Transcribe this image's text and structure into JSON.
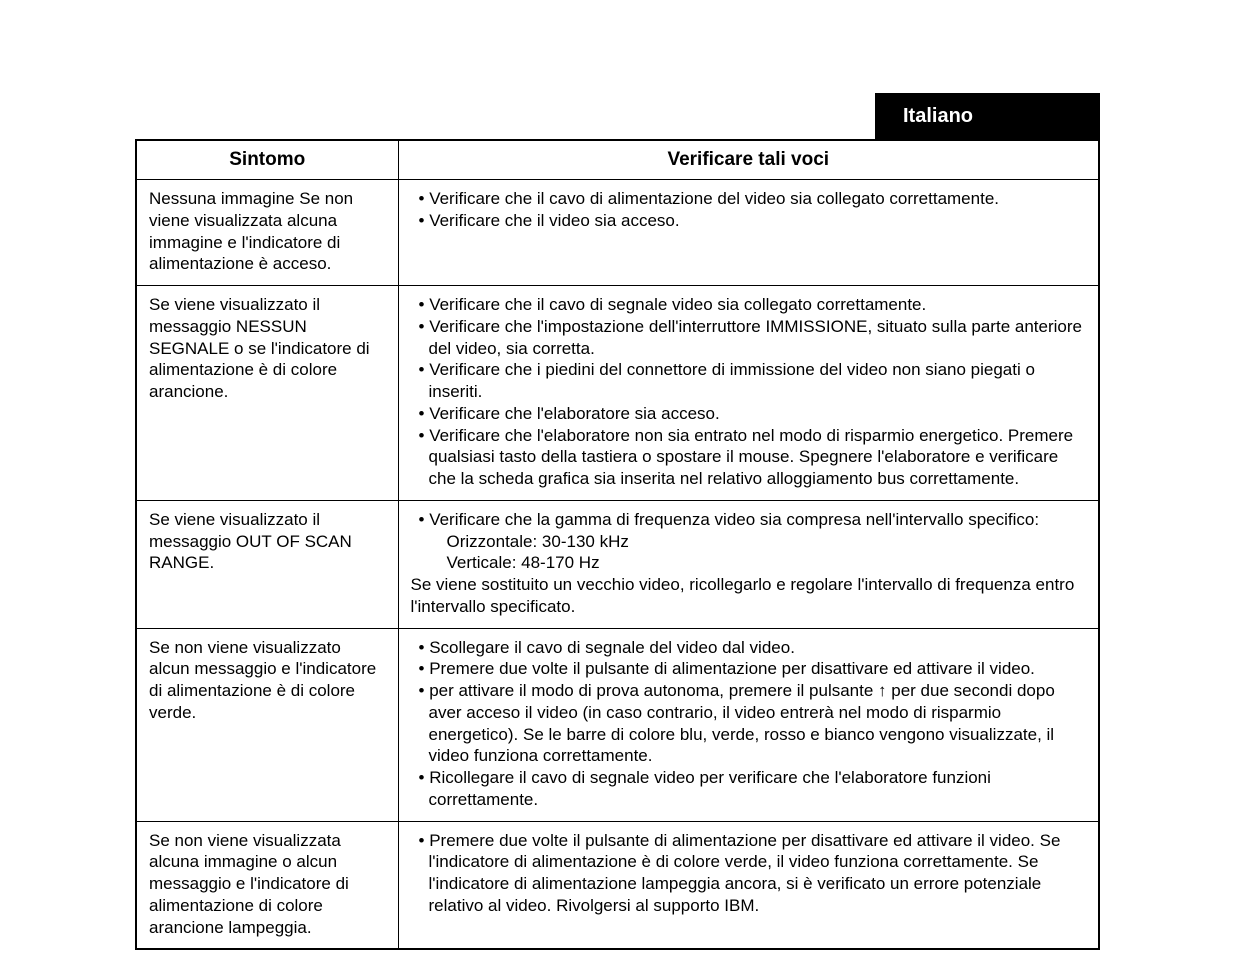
{
  "language_tab": "Italiano",
  "table": {
    "headers": {
      "symptom": "Sintomo",
      "check": "Verificare tali voci"
    },
    "rows": [
      {
        "symptom": "Nessuna immagine\nSe non viene visualizzata alcuna immagine e l'indicatore di alimentazione è acceso.",
        "checks": [
          "Verificare che il cavo di alimentazione del video sia collegato correttamente.",
          "Verificare che il video sia acceso."
        ]
      },
      {
        "symptom": "Se viene visualizzato il messaggio NESSUN SEGNALE o se l'indicatore di alimentazione è di colore arancione.",
        "checks": [
          "Verificare che il cavo di segnale video sia collegato correttamente.",
          "Verificare che l'impostazione dell'interruttore IMMISSIONE, situato sulla parte anteriore del video, sia corretta.",
          "Verificare che i piedini del connettore di immissione del video non siano piegati o inseriti.",
          "Verificare che l'elaboratore sia acceso.",
          "Verificare che l'elaboratore non sia entrato nel modo di risparmio energetico. Premere qualsiasi tasto della tastiera o spostare il mouse. Spegnere l'elaboratore e verificare che la scheda grafica sia inserita nel relativo alloggiamento bus correttamente."
        ]
      },
      {
        "symptom": "Se viene visualizzato il messaggio OUT OF SCAN RANGE.",
        "checks_prefix": "Verificare che la gamma di frequenza video sia compresa nell'intervallo specifico:",
        "sub1": "Orizzontale: 30-130 kHz",
        "sub2": "Verticale: 48-170 Hz",
        "plain_after": "Se viene sostituito un vecchio video, ricollegarlo e regolare l'intervallo di frequenza entro l'intervallo specificato."
      },
      {
        "symptom": "Se non viene visualizzato alcun messaggio e l'indicatore di alimentazione è di colore verde.",
        "checks": [
          "Scollegare il cavo di segnale del video dal video.",
          "Premere due volte il pulsante di alimentazione per disattivare ed attivare il video.",
          "per attivare il modo di prova autonoma, premere il pulsante ↑ per due secondi dopo aver acceso il video (in caso contrario, il video entrerà nel modo di risparmio energetico). Se le barre di colore blu, verde, rosso e bianco vengono visualizzate, il video funziona correttamente.",
          "Ricollegare il cavo di segnale video per verificare che l'elaboratore funzioni correttamente."
        ]
      },
      {
        "symptom": "Se non viene visualizzata alcuna immagine o alcun messaggio e l'indicatore di alimentazione di colore arancione lampeggia.",
        "checks": [
          "Premere due volte il pulsante di alimentazione per disattivare ed attivare il video. Se l'indicatore di alimentazione è di colore verde, il video funziona correttamente. Se l'indicatore di alimentazione lampeggia ancora, si è verificato un errore potenziale relativo al video. Rivolgersi al supporto IBM."
        ]
      }
    ]
  }
}
